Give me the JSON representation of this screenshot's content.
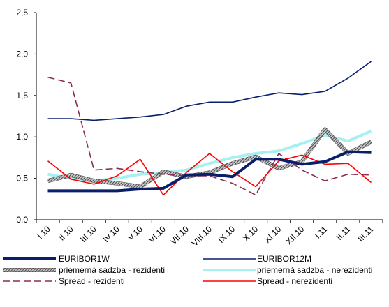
{
  "chart_data": {
    "type": "line",
    "title": "",
    "xlabel": "",
    "ylabel": "",
    "ylim": [
      0.0,
      2.5
    ],
    "yticks": [
      "0,0",
      "0,5",
      "1,0",
      "1,5",
      "2,0",
      "2,5"
    ],
    "categories": [
      "I.10",
      "II.10",
      "III.10",
      "IV.10",
      "V.10",
      "VI.10",
      "VII.10",
      "VIII.10",
      "IX.10",
      "X.10",
      "XI.10",
      "XII.10",
      "I.11",
      "II.11",
      "III.11"
    ],
    "grid": false,
    "legend_position": "bottom",
    "series": [
      {
        "name": "EURIBOR1W",
        "color": "#0a1f6b",
        "style": "thick",
        "values": [
          0.35,
          0.35,
          0.35,
          0.35,
          0.37,
          0.38,
          0.54,
          0.55,
          0.52,
          0.73,
          0.73,
          0.67,
          0.7,
          0.82,
          0.81
        ]
      },
      {
        "name": "EURIBOR12M",
        "color": "#0a1f6b",
        "style": "thin",
        "values": [
          1.22,
          1.22,
          1.2,
          1.22,
          1.24,
          1.27,
          1.37,
          1.42,
          1.42,
          1.48,
          1.53,
          1.51,
          1.55,
          1.71,
          1.91
        ]
      },
      {
        "name": "priemerná sadzba - rezidenti",
        "color": "#808080",
        "style": "hatched",
        "values": [
          0.47,
          0.54,
          0.47,
          0.44,
          0.4,
          0.58,
          0.52,
          0.57,
          0.68,
          0.76,
          0.62,
          0.7,
          1.09,
          0.8,
          0.94
        ]
      },
      {
        "name": "priemerná sadzba - nerezidenti",
        "color": "#a6f0f0",
        "style": "light",
        "values": [
          0.55,
          0.5,
          0.47,
          0.5,
          0.55,
          0.57,
          0.6,
          0.68,
          0.75,
          0.8,
          0.83,
          0.92,
          1.02,
          0.95,
          1.07
        ]
      },
      {
        "name": "Spread - rezidenti",
        "color": "#8b2b5a",
        "style": "dashed",
        "values": [
          1.72,
          1.65,
          0.6,
          0.62,
          0.58,
          0.55,
          0.53,
          0.53,
          0.44,
          0.3,
          0.8,
          0.6,
          0.47,
          0.55,
          0.54
        ]
      },
      {
        "name": "Spread - nerezidenti",
        "color": "#ff0000",
        "style": "thin",
        "values": [
          0.71,
          0.49,
          0.43,
          0.53,
          0.73,
          0.3,
          0.57,
          0.8,
          0.58,
          0.4,
          0.71,
          0.78,
          0.67,
          0.68,
          0.45
        ]
      }
    ]
  }
}
